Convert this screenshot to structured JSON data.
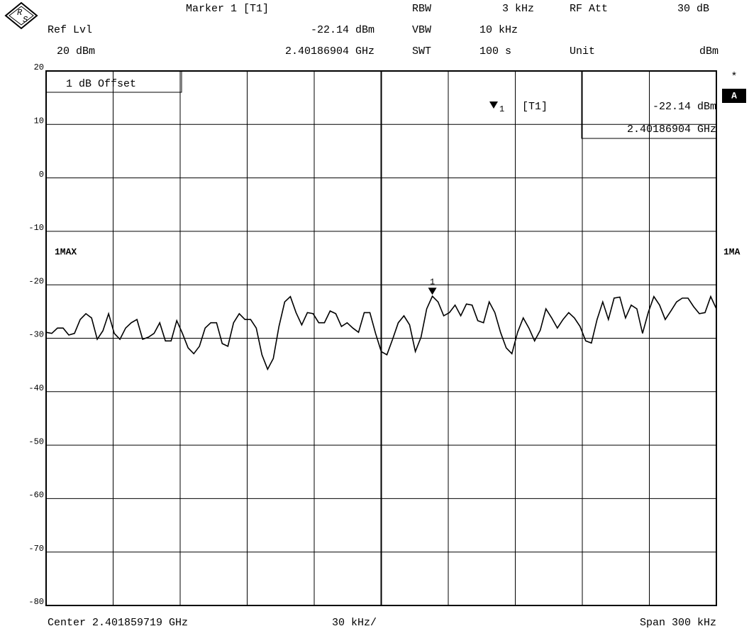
{
  "header": {
    "marker": "Marker 1 [T1]",
    "ref_lvl": "Ref Lvl",
    "marker_level": "-22.14 dBm",
    "ref_level": "20 dBm",
    "marker_freq": "2.40186904 GHz",
    "rbw_label": "RBW",
    "rbw": "3 kHz",
    "vbw_label": "VBW",
    "vbw": "10 kHz",
    "swt_label": "SWT",
    "swt": "100 s",
    "rf_att_label": "RF Att",
    "rf_att": "30 dB",
    "unit_label": "Unit",
    "unit": "dBm"
  },
  "chart_data": {
    "type": "line",
    "ylim": [
      -80,
      20
    ],
    "yticks": [
      20,
      10,
      0,
      -10,
      -20,
      -30,
      -40,
      -50,
      -60,
      -70,
      -80
    ],
    "grid": true,
    "color": "#000000",
    "offset_note": "1 dB Offset",
    "trace_label": "1MAX",
    "trace_label_right": "1MA",
    "screen_label": "A",
    "star": "*",
    "marker": {
      "label": "1",
      "number": "1",
      "trace": "[T1]",
      "level": "-22.14 dBm",
      "frequency": "2.40186904 GHz"
    },
    "values": [
      -28.9,
      -29.1,
      -28.1,
      -28.1,
      -29.4,
      -29.1,
      -26.5,
      -25.4,
      -26.2,
      -30.2,
      -28.6,
      -25.4,
      -29.1,
      -30.2,
      -28.1,
      -27.1,
      -26.5,
      -30.2,
      -29.8,
      -29.1,
      -27.1,
      -30.5,
      -30.5,
      -26.7,
      -29.1,
      -31.8,
      -32.9,
      -31.5,
      -28.1,
      -27.1,
      -27.1,
      -31,
      -31.5,
      -27.1,
      -25.4,
      -26.5,
      -26.5,
      -28.1,
      -33.1,
      -35.8,
      -33.8,
      -27.8,
      -23.2,
      -22.2,
      -25.2,
      -27.5,
      -25.2,
      -25.4,
      -27.1,
      -27.1,
      -24.9,
      -25.4,
      -27.8,
      -27.1,
      -28.1,
      -28.9,
      -25.2,
      -25.2,
      -29.1,
      -32.5,
      -33.1,
      -30.2,
      -27.1,
      -25.8,
      -27.5,
      -32.5,
      -29.8,
      -24.5,
      -22.14,
      -23.2,
      -25.8,
      -25.2,
      -23.8,
      -25.8,
      -23.6,
      -23.8,
      -26.7,
      -27.1,
      -23.2,
      -25.2,
      -28.9,
      -31.8,
      -32.9,
      -28.9,
      -26.2,
      -28.1,
      -30.5,
      -28.5,
      -24.5,
      -26.2,
      -28.1,
      -26.5,
      -25.2,
      -26.2,
      -27.8,
      -30.5,
      -30.9,
      -26.5,
      -23.2,
      -26.5,
      -22.5,
      -22.3,
      -26.2,
      -23.8,
      -24.5,
      -29.1,
      -25.2,
      -22.2,
      -23.8,
      -26.5,
      -24.9,
      -23.2,
      -22.5,
      -22.5,
      -24.1,
      -25.4,
      -25.2,
      -22.2,
      -24.5
    ],
    "center": "Center 2.401859719 GHz",
    "per_div": "30 kHz/",
    "span": "Span 300 kHz"
  }
}
